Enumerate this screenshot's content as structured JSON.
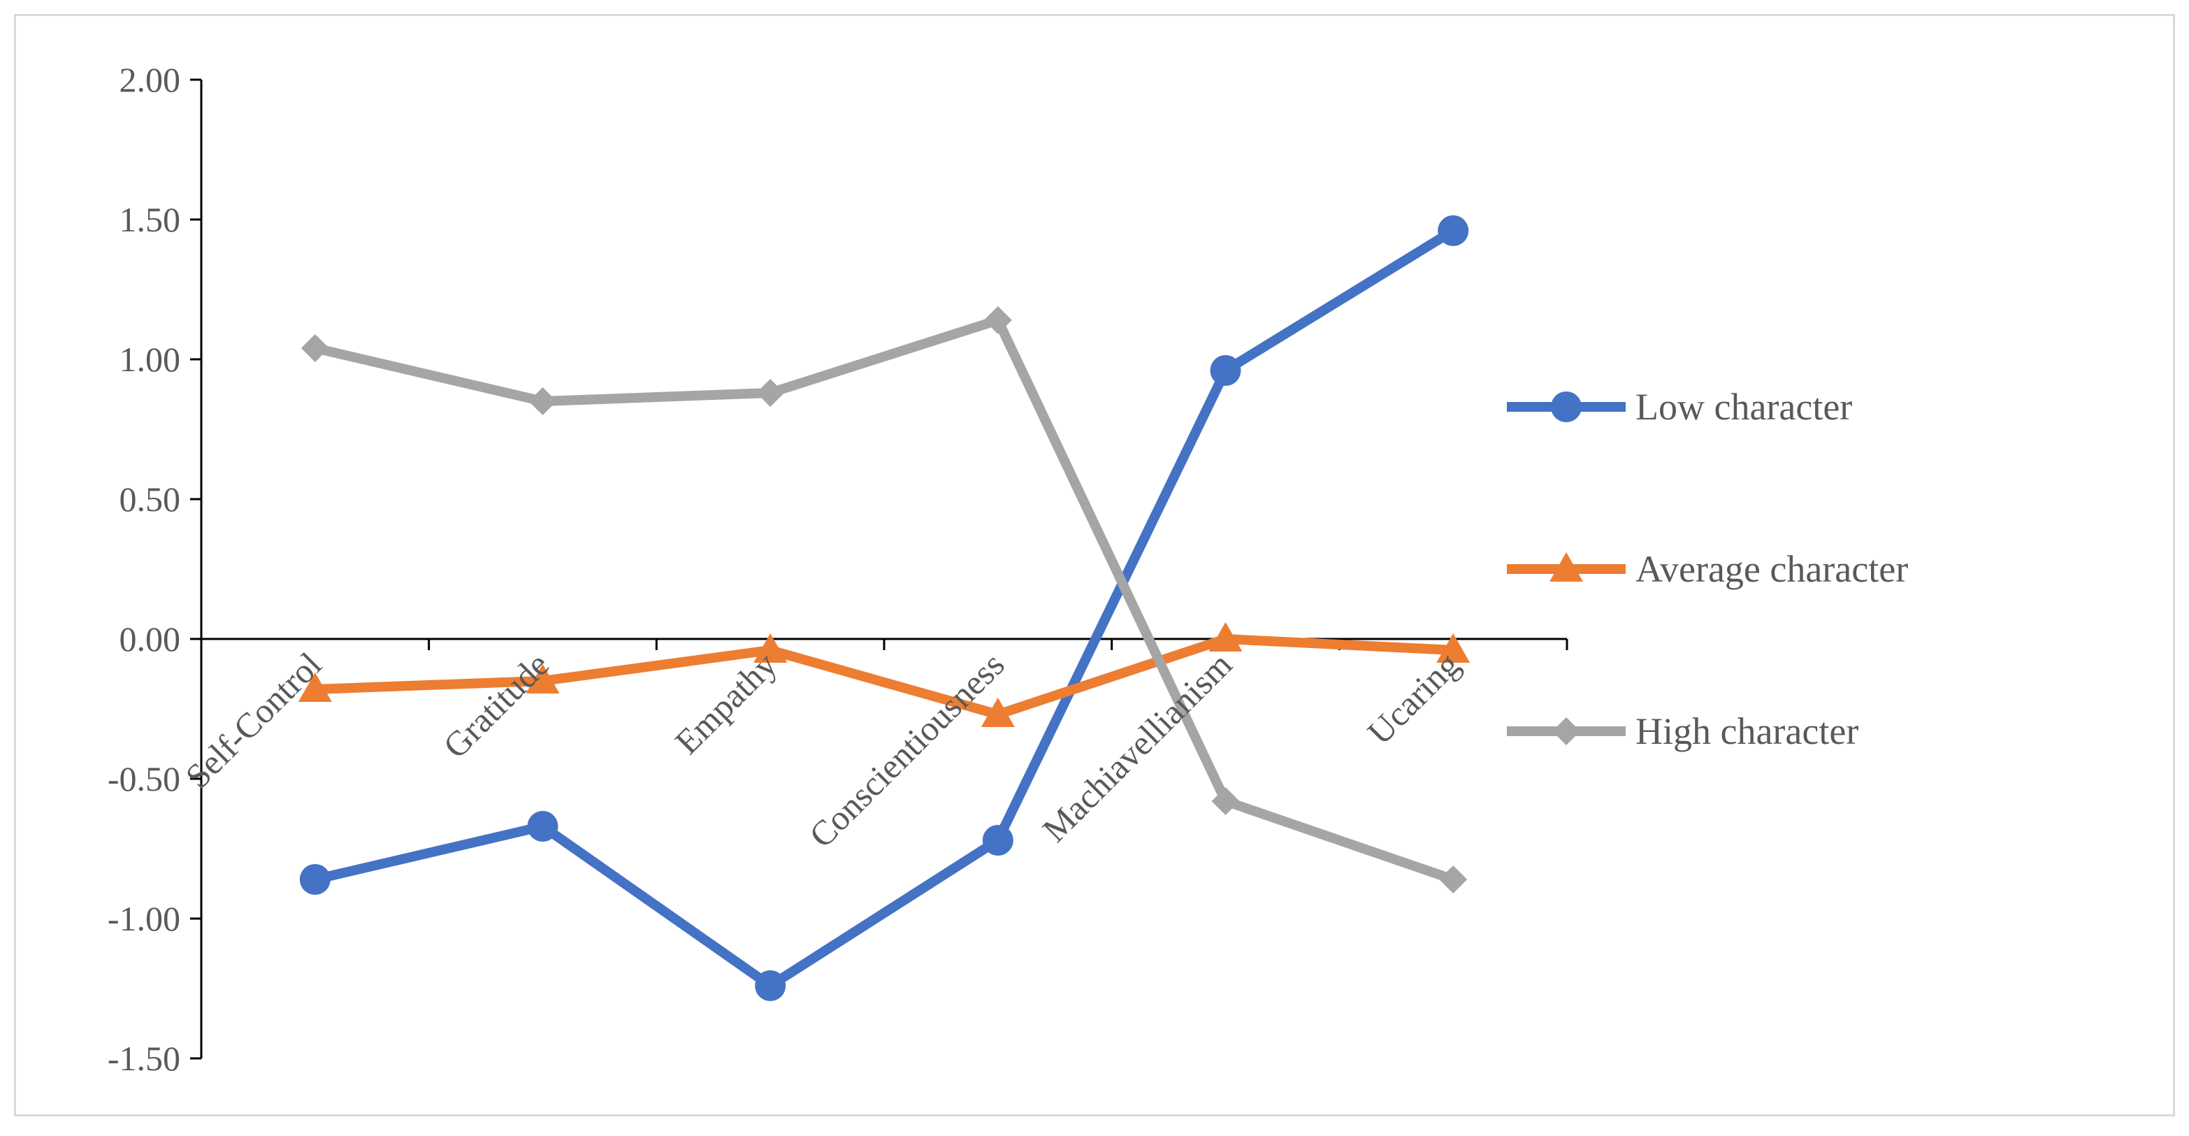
{
  "chart_data": {
    "type": "line",
    "title": "",
    "xlabel": "",
    "ylabel": "",
    "categories": [
      "Self-Control",
      "Gratitude",
      "Empathy",
      "Conscientiousness",
      "Machiavellianism",
      "Ucaring"
    ],
    "y_ticks": [
      "2.00",
      "1.50",
      "1.00",
      "0.50",
      "0.00",
      "-0.50",
      "-1.00",
      "-1.50"
    ],
    "ylim": [
      -1.5,
      2.0
    ],
    "grid": false,
    "legend_position": "right",
    "series": [
      {
        "name": "Low character",
        "color": "#4472c4",
        "marker": "circle",
        "values": [
          -0.86,
          -0.67,
          -1.24,
          -0.72,
          0.96,
          1.46
        ]
      },
      {
        "name": "Average character",
        "color": "#ed7d31",
        "marker": "triangle",
        "values": [
          -0.18,
          -0.15,
          -0.04,
          -0.27,
          0.0,
          -0.04
        ]
      },
      {
        "name": "High character",
        "color": "#a5a5a5",
        "marker": "diamond",
        "values": [
          1.04,
          0.85,
          0.88,
          1.14,
          -0.58,
          -0.86
        ]
      }
    ]
  }
}
